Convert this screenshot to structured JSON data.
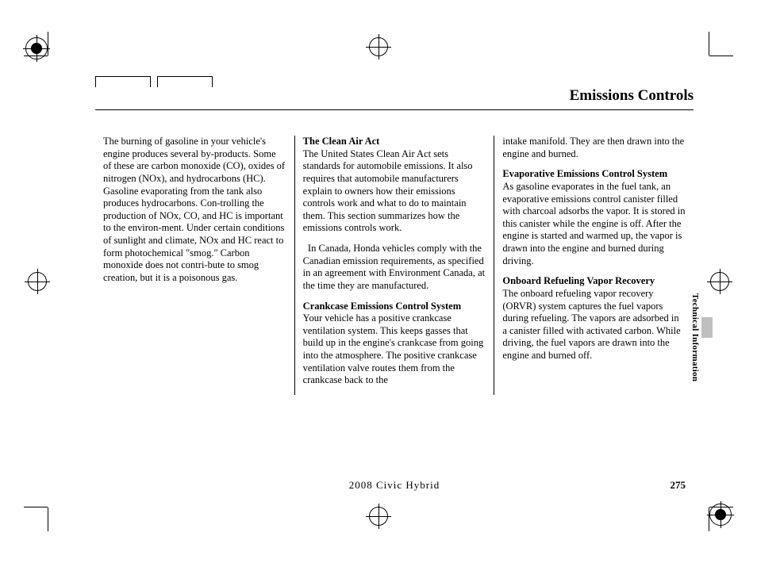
{
  "page": {
    "title": "Emissions Controls",
    "footer": "2008  Civic  Hybrid",
    "page_number": "275",
    "side_label": "Technical Information"
  },
  "col1": {
    "p1": "The burning of gasoline in your vehicle's engine produces several by-products. Some of these are carbon monoxide (CO), oxides of nitrogen (NOx), and hydrocarbons (HC). Gasoline evaporating from the tank also produces hydrocarbons. Con-trolling the production of NOx, CO, and HC is important to the environ-ment. Under certain conditions of sunlight and climate, NOx and HC react to form photochemical \"smog.\" Carbon monoxide does not contri-bute to smog creation, but it is a poisonous gas."
  },
  "col2": {
    "h1": "The Clean Air Act",
    "p1": "The United States Clean Air Act sets standards for automobile emissions. It also requires that automobile manufacturers explain to owners how their emissions controls work and what to do to maintain them. This section summarizes how the emissions controls work.",
    "p2": "  In Canada, Honda vehicles comply with the Canadian emission requirements, as specified in an agreement with Environment Canada, at the time they are manufactured.",
    "h2": "Crankcase Emissions Control System",
    "p3": "Your vehicle has a positive crankcase ventilation system. This keeps gasses that build up in the engine's crankcase from going into the atmosphere. The positive crankcase ventilation valve routes them from the crankcase back to the"
  },
  "col3": {
    "p1": "intake manifold. They are then drawn into the engine and burned.",
    "h1": "Evaporative Emissions Control System",
    "p2": "As gasoline evaporates in the fuel tank, an evaporative emissions control canister filled with charcoal adsorbs the vapor. It is stored in this canister while the engine is off. After the engine is started and warmed up, the vapor is drawn into the engine and burned during driving.",
    "h2": "Onboard Refueling Vapor Recovery",
    "p3": "The onboard refueling vapor recovery (ORVR) system captures the fuel vapors during refueling. The vapors are adsorbed in a canister filled with activated carbon. While driving, the fuel vapors are drawn into the engine and burned off."
  }
}
